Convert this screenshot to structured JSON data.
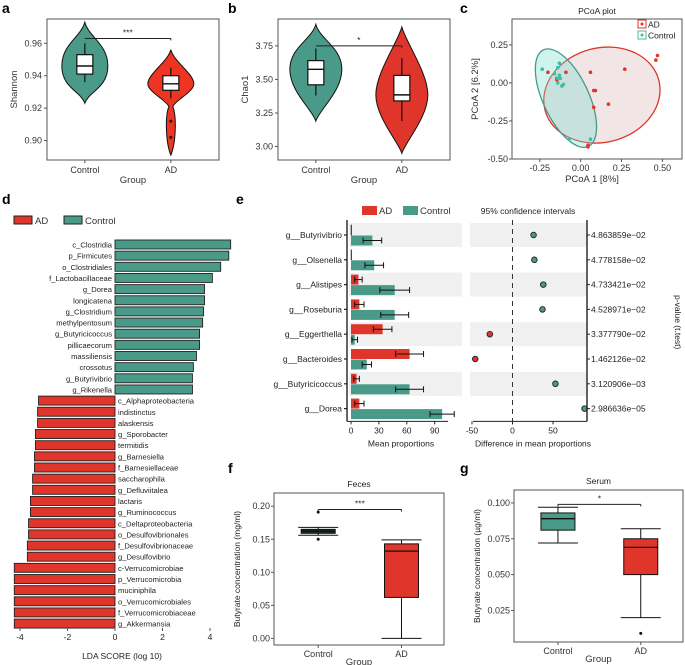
{
  "colors": {
    "AD": "#e0352b",
    "Control": "#4a9a89",
    "AD_light": "#ee3524",
    "bg_band": "#f0f0f0"
  },
  "chart_data": [
    {
      "panel": "a",
      "type": "violin",
      "title": "",
      "xlabel": "Group",
      "ylabel": "Shannon",
      "categories": [
        "Control",
        "AD"
      ],
      "yticks": [
        "0.90",
        "0.92",
        "0.94",
        "0.96"
      ],
      "ylim": [
        0.888,
        0.975
      ],
      "boxes": [
        {
          "group": "Control",
          "min": 0.936,
          "q1": 0.941,
          "median": 0.946,
          "q3": 0.953,
          "max": 0.96,
          "vmin": 0.923,
          "vmax": 0.973,
          "outliers": []
        },
        {
          "group": "AD",
          "min": 0.926,
          "q1": 0.931,
          "median": 0.935,
          "q3": 0.94,
          "max": 0.945,
          "vmin": 0.891,
          "vmax": 0.956,
          "outliers": [
            0.912,
            0.902
          ]
        }
      ],
      "significance": "***"
    },
    {
      "panel": "b",
      "type": "violin",
      "title": "",
      "xlabel": "Group",
      "ylabel": "Chao1",
      "categories": [
        "Control",
        "AD"
      ],
      "yticks": [
        "3.00",
        "3.25",
        "3.50",
        "3.75"
      ],
      "ylim": [
        2.9,
        3.95
      ],
      "boxes": [
        {
          "group": "Control",
          "min": 3.38,
          "q1": 3.46,
          "median": 3.575,
          "q3": 3.64,
          "max": 3.73,
          "vmin": 3.19,
          "vmax": 3.91,
          "outliers": []
        },
        {
          "group": "AD",
          "min": 3.19,
          "q1": 3.34,
          "median": 3.385,
          "q3": 3.53,
          "max": 3.66,
          "vmin": 2.95,
          "vmax": 3.89,
          "outliers": []
        }
      ],
      "significance": "*"
    },
    {
      "panel": "c",
      "type": "scatter",
      "title": "PCoA plot",
      "xlabel": "PCoA 1 [8%]",
      "ylabel": "PCoA 2 [6.2%]",
      "xticks": [
        "-0.25",
        "0.00",
        "0.25",
        "0.50"
      ],
      "yticks": [
        "-0.50",
        "-0.25",
        "0.00",
        "0.25"
      ],
      "xlim": [
        -0.42,
        0.62
      ],
      "ylim": [
        -0.5,
        0.42
      ],
      "legend": [
        "AD",
        "Control"
      ],
      "legend_position": "top-right",
      "series": [
        {
          "name": "AD",
          "points": [
            [
              -0.2,
              0.07
            ],
            [
              -0.145,
              0.03
            ],
            [
              -0.145,
              0.02
            ],
            [
              -0.09,
              0.07
            ],
            [
              0.06,
              0.07
            ],
            [
              0.08,
              -0.05
            ],
            [
              0.09,
              -0.05
            ],
            [
              0.08,
              -0.16
            ],
            [
              0.17,
              -0.14
            ],
            [
              0.27,
              0.09
            ],
            [
              0.46,
              0.15
            ],
            [
              0.47,
              0.18
            ],
            [
              0.045,
              -0.41
            ],
            [
              0.045,
              -0.42
            ]
          ],
          "ellipse": {
            "cx": 0.13,
            "cy": -0.08,
            "rx": 0.36,
            "ry": 0.31,
            "angle": -15
          }
        },
        {
          "name": "Control",
          "points": [
            [
              -0.235,
              0.09
            ],
            [
              -0.16,
              0.06
            ],
            [
              -0.13,
              0.13
            ],
            [
              -0.14,
              0.1
            ],
            [
              -0.13,
              0.05
            ],
            [
              -0.14,
              0.03
            ],
            [
              -0.125,
              0.03
            ],
            [
              -0.115,
              -0.02
            ],
            [
              -0.105,
              -0.01
            ],
            [
              -0.14,
              0.0
            ],
            [
              -0.07,
              -0.37
            ],
            [
              0.06,
              -0.37
            ]
          ],
          "ellipse": {
            "cx": -0.09,
            "cy": -0.1,
            "rx": 0.14,
            "ry": 0.35,
            "angle": -25
          }
        }
      ]
    },
    {
      "panel": "d",
      "type": "bar",
      "orientation": "horizontal",
      "title": "",
      "xlabel": "LDA SCORE (log 10)",
      "ylabel": "",
      "xticks": [
        "-4",
        "-2",
        "0",
        "2",
        "4"
      ],
      "xlim": [
        -4.4,
        5
      ],
      "legend": [
        "AD",
        "Control"
      ],
      "legend_position": "top-left",
      "categories": [
        "c_Clostridia",
        "p_Firmicutes",
        "o_Clostridiales",
        "f_Lactobacillaceae",
        "g_Dorea",
        "longicatena",
        "g_Clostridium",
        "methylpentosum",
        "g_Butyricicoccus",
        "pillicaecorum",
        "massiliensis",
        "crossotus",
        "g_Butyrivibrio",
        "g_Rikenella",
        "c_Alphaproteobacteria",
        "indistinctus",
        "alaskensis",
        "g_Sporobacter",
        "termitidis",
        "g_Barnesiella",
        "f_Barnesiellaceae",
        "saccharophila",
        "g_Defluviitalea",
        "lactaris",
        "g_Ruminococcus",
        "c_Deltaproteobacteria",
        "o_Desulfovibrionales",
        "f_Desulfovibrionaceae",
        "g_Desulfovibrio",
        "c-Verrucomicrobiae",
        "p_Verrucomicrobia",
        "muciniphila",
        "o_Verrucomicrobiales",
        "f_Verrucomicrobiaceae",
        "g_Akkermansia"
      ],
      "values": [
        4.87,
        4.79,
        4.45,
        4.1,
        3.77,
        3.77,
        3.73,
        3.69,
        3.56,
        3.56,
        3.43,
        3.3,
        3.26,
        3.26,
        -3.22,
        -3.26,
        -3.26,
        -3.35,
        -3.35,
        -3.39,
        -3.39,
        -3.47,
        -3.47,
        -3.56,
        -3.56,
        -3.64,
        -3.64,
        -3.69,
        -3.69,
        -4.24,
        -4.24,
        -4.24,
        -4.24,
        -4.24,
        -4.24
      ]
    },
    {
      "panel": "e",
      "type": "bar",
      "orientation": "horizontal",
      "title": "95% confidence intervals",
      "xlabel": "Mean proportions",
      "xlabel2": "Difference in mean proportions",
      "ylabel_right": "p-value (t.test)",
      "xticks": [
        "0",
        "30",
        "60",
        "90"
      ],
      "xticks2": [
        "-50",
        "0",
        "50"
      ],
      "xlim": [
        0,
        115
      ],
      "xlim2": [
        -60,
        95
      ],
      "legend": [
        "AD",
        "Control"
      ],
      "legend_position": "top",
      "categories": [
        "g__Butyrivibrio",
        "g__Olsenella",
        "g__Alistipes",
        "g__Roseburia",
        "g__Eggerthella",
        "g__Bacteroides",
        "g__Butyricicoccus",
        "g__Dorea"
      ],
      "series": [
        {
          "name": "AD",
          "values": [
            0.5,
            0.5,
            8,
            9,
            34,
            63,
            6,
            9
          ],
          "errors": [
            0,
            0,
            4,
            5,
            10,
            15,
            3,
            5
          ]
        },
        {
          "name": "Control",
          "values": [
            23,
            25,
            47,
            47,
            4,
            17,
            63,
            98
          ],
          "errors": [
            10,
            10,
            16,
            15,
            3,
            5,
            15,
            13
          ]
        }
      ],
      "difference": [
        26,
        27,
        38,
        37,
        -28,
        -46,
        53,
        89
      ],
      "p_values": [
        "4.863859e−02",
        "4.778158e−02",
        "4.733421e−02",
        "4.528971e−02",
        "3.377790e−02",
        "1.462126e−02",
        "3.120906e−03",
        "2.986636e−05"
      ]
    },
    {
      "panel": "f",
      "type": "box",
      "title": "Feces",
      "xlabel": "Group",
      "ylabel": "Butyrate concentration (mg/ml)",
      "categories": [
        "Control",
        "AD"
      ],
      "yticks": [
        "0.00",
        "0.05",
        "0.10",
        "0.15",
        "0.20"
      ],
      "ylim": [
        -0.01,
        0.22
      ],
      "boxes": [
        {
          "group": "Control",
          "min": 0.156,
          "q1": 0.159,
          "median": 0.162,
          "q3": 0.165,
          "max": 0.168,
          "outliers": [
            0.191,
            0.15
          ]
        },
        {
          "group": "AD",
          "min": 0.0,
          "q1": 0.062,
          "median": 0.132,
          "q3": 0.143,
          "max": 0.149,
          "outliers": []
        }
      ],
      "significance": "***"
    },
    {
      "panel": "g",
      "type": "box",
      "title": "Serum",
      "xlabel": "Group",
      "ylabel": "Butyrate concentration (µg/ml)",
      "categories": [
        "Control",
        "AD"
      ],
      "yticks": [
        "0.025",
        "0.050",
        "0.075",
        "0.100"
      ],
      "ylim": [
        0.003,
        0.109
      ],
      "boxes": [
        {
          "group": "Control",
          "min": 0.072,
          "q1": 0.081,
          "median": 0.089,
          "q3": 0.093,
          "max": 0.097,
          "outliers": []
        },
        {
          "group": "AD",
          "min": 0.02,
          "q1": 0.05,
          "median": 0.069,
          "q3": 0.075,
          "max": 0.082,
          "outliers": [
            0.009
          ]
        }
      ],
      "significance": "*"
    }
  ],
  "labels": {
    "a": "a",
    "b": "b",
    "c": "c",
    "d": "d",
    "e": "e",
    "f": "f",
    "g": "g"
  }
}
